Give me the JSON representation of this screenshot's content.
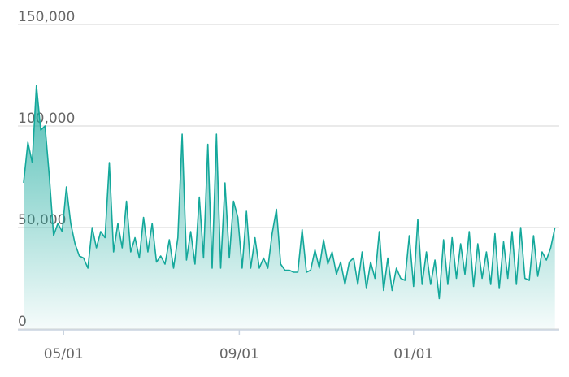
{
  "chart_data": {
    "type": "area",
    "x": [
      -28,
      -25,
      -22,
      -19,
      -16,
      -13,
      -10,
      -7,
      -4,
      -1,
      2,
      5,
      8,
      11,
      14,
      17,
      20,
      23,
      26,
      29,
      32,
      35,
      38,
      41,
      44,
      47,
      50,
      53,
      56,
      59,
      62,
      65,
      68,
      71,
      74,
      77,
      80,
      83,
      86,
      89,
      92,
      95,
      98,
      101,
      104,
      107,
      110,
      113,
      116,
      119,
      122,
      125,
      128,
      131,
      134,
      137,
      140,
      143,
      146,
      149,
      152,
      155,
      158,
      161,
      164,
      167,
      170,
      173,
      176,
      179,
      182,
      185,
      188,
      191,
      194,
      197,
      200,
      203,
      206,
      209,
      212,
      215,
      218,
      221,
      224,
      227,
      230,
      233,
      236,
      239,
      242,
      245,
      248,
      251,
      254,
      257,
      260,
      263,
      266,
      269,
      272,
      275,
      278,
      281,
      284,
      287,
      290,
      293,
      296,
      299,
      302,
      305,
      308,
      311,
      314,
      317,
      320,
      323,
      326,
      329,
      332,
      335,
      338,
      341,
      344
    ],
    "values": [
      72000,
      92000,
      82000,
      120000,
      98000,
      100000,
      75000,
      46000,
      52000,
      48000,
      70000,
      52000,
      42000,
      36000,
      35000,
      30000,
      50000,
      40000,
      48000,
      45000,
      82000,
      38000,
      52000,
      40000,
      63000,
      38000,
      45000,
      35000,
      55000,
      38000,
      52000,
      33000,
      36000,
      32000,
      44000,
      30000,
      45000,
      96000,
      34000,
      48000,
      32000,
      65000,
      35000,
      91000,
      30000,
      96000,
      30000,
      72000,
      35000,
      63000,
      55000,
      30000,
      58000,
      30000,
      45000,
      30000,
      35000,
      30000,
      47000,
      59000,
      32000,
      29000,
      29000,
      28000,
      28000,
      49000,
      28000,
      29000,
      39000,
      30000,
      44000,
      32000,
      38000,
      27000,
      33000,
      22000,
      33000,
      35000,
      22000,
      38000,
      20000,
      33000,
      25000,
      48000,
      19000,
      35000,
      19000,
      30000,
      25000,
      24000,
      46000,
      21000,
      54000,
      22000,
      38000,
      22000,
      34000,
      15000,
      44000,
      22000,
      45000,
      25000,
      42000,
      27000,
      48000,
      21000,
      42000,
      25000,
      38000,
      22000,
      47000,
      20000,
      43000,
      25000,
      48000,
      22000,
      50000,
      25000,
      24000,
      46000,
      26000,
      38000,
      34000,
      40000,
      50000
    ],
    "color": "#14a89b",
    "xlim": [
      -32,
      347
    ],
    "xticks": [
      {
        "value": 0,
        "label": "05/01"
      },
      {
        "value": 123,
        "label": "09/01"
      },
      {
        "value": 245,
        "label": "01/01"
      }
    ],
    "ylim": [
      0,
      150000
    ],
    "yticks": [
      0,
      {
        "value": 50000,
        "label": "50,000"
      },
      {
        "value": 100000,
        "label": "100,000"
      },
      {
        "value": 150000,
        "label": "150,000"
      }
    ],
    "grid": true
  }
}
